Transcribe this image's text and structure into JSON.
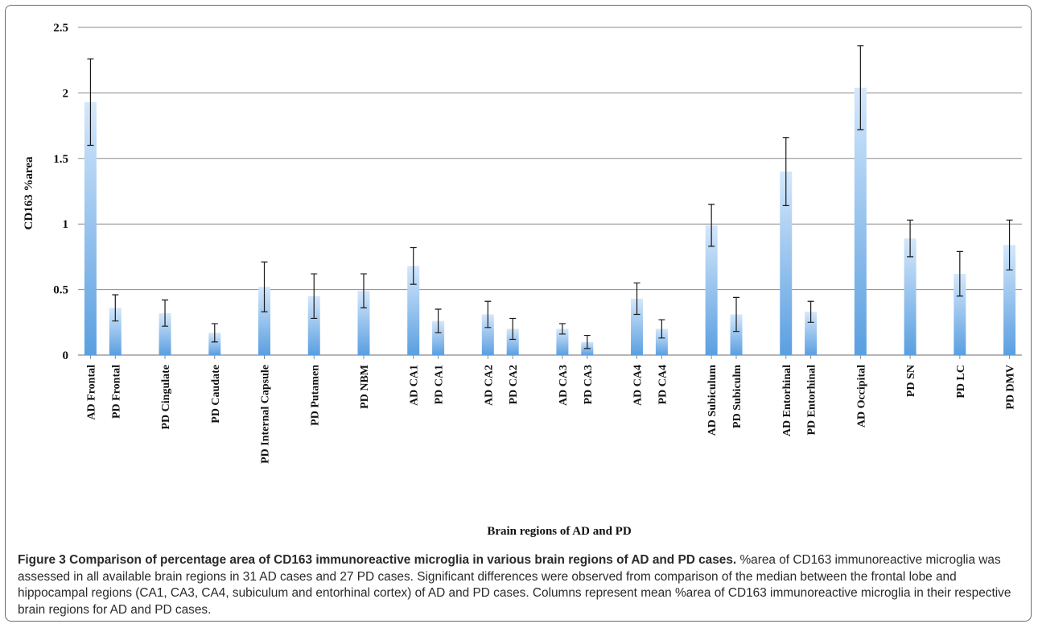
{
  "figure": {
    "caption_title": "Figure 3 Comparison of percentage area of CD163 immunoreactive microglia in various brain regions of AD and PD cases.",
    "caption_text": "%area of CD163 immunoreactive microglia was assessed in all available brain regions in 31 AD cases and 27 PD cases. Significant differences were observed from comparison of the median between the frontal lobe and hippocampal regions (CA1, CA3, CA4, subiculum and entorhinal cortex) of AD and PD cases. Columns represent mean %area of CD163 immunoreactive microglia in their respective brain regions for AD and PD cases."
  },
  "chart_data": {
    "type": "bar",
    "title": "",
    "xlabel": "Brain regions of AD and PD",
    "ylabel": "CD163 %area",
    "ylim": [
      0,
      2.5
    ],
    "yticks": [
      "0",
      "0.5",
      "1",
      "1.5",
      "2",
      "2.5"
    ],
    "grid": true,
    "bar_color": "#5a9fe0",
    "categories": [
      "AD Frontal",
      "PD Frontal",
      "PD Cingulate",
      "PD Caudate",
      "PD Internal Capsule",
      "PD Putamen",
      "PD NBM",
      "AD CA1",
      "PD CA1",
      "AD CA2",
      "PD CA2",
      "AD CA3",
      "PD CA3",
      "AD CA4",
      "PD CA4",
      "AD Subiculum",
      "PD Subiculm",
      "AD Entorhinal",
      "PD Entorhinal",
      "AD Occipital",
      "PD SN",
      "PD LC",
      "PD DMV"
    ],
    "values": [
      1.93,
      0.36,
      0.32,
      0.17,
      0.52,
      0.45,
      0.49,
      0.68,
      0.26,
      0.31,
      0.2,
      0.2,
      0.1,
      0.43,
      0.2,
      0.99,
      0.31,
      1.4,
      0.33,
      2.04,
      0.89,
      0.62,
      0.84
    ],
    "error": [
      0.33,
      0.1,
      0.1,
      0.07,
      0.19,
      0.17,
      0.13,
      0.14,
      0.09,
      0.1,
      0.08,
      0.04,
      0.05,
      0.12,
      0.07,
      0.16,
      0.13,
      0.26,
      0.08,
      0.32,
      0.14,
      0.17,
      0.19
    ]
  }
}
